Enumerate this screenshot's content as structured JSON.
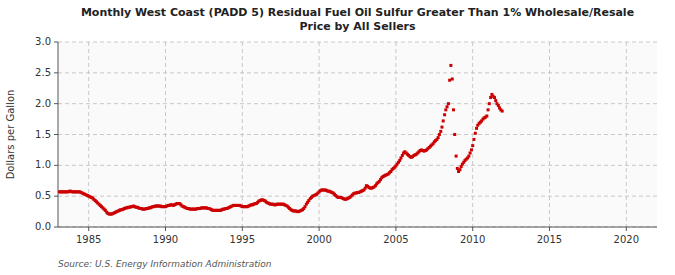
{
  "chart_data": {
    "type": "scatter",
    "title": "Monthly West Coast (PADD 5) Residual Fuel Oil Sulfur Greater Than 1% Wholesale/Resale\nPrice by All Sellers",
    "y_label": "Dollars per Gallon",
    "annotations": [
      "Source: U.S. Energy Information Administration"
    ],
    "color": "#cc0000",
    "marker": "square",
    "grid": true,
    "xlim": [
      1983,
      2022
    ],
    "ylim": [
      0.0,
      3.0
    ],
    "xticks": [
      1985,
      1990,
      1995,
      2000,
      2005,
      2010,
      2015,
      2020
    ],
    "yticks": [
      {
        "value": 0.0,
        "label": "0.0"
      },
      0.5,
      {
        "value": 1.0,
        "label": "1.0"
      },
      1.5,
      {
        "value": 2.0,
        "label": "2.0"
      },
      2.5,
      {
        "value": 3.0,
        "label": "3.0"
      }
    ],
    "x": [
      1983.08,
      1983.17,
      1983.25,
      1983.33,
      1983.42,
      1983.5,
      1983.58,
      1983.67,
      1983.75,
      1983.83,
      1983.92,
      1984.0,
      1984.08,
      1984.17,
      1984.25,
      1984.33,
      1984.42,
      1984.5,
      1984.58,
      1984.67,
      1984.75,
      1984.83,
      1984.92,
      1985.0,
      1985.08,
      1985.17,
      1985.25,
      1985.33,
      1985.42,
      1985.5,
      1985.58,
      1985.67,
      1985.75,
      1985.83,
      1985.92,
      1986.0,
      1986.08,
      1986.17,
      1986.25,
      1986.33,
      1986.42,
      1986.5,
      1986.58,
      1986.67,
      1986.75,
      1986.83,
      1986.92,
      1987.0,
      1987.08,
      1987.17,
      1987.25,
      1987.33,
      1987.42,
      1987.5,
      1987.58,
      1987.67,
      1987.75,
      1987.83,
      1987.92,
      1988.0,
      1988.08,
      1988.17,
      1988.25,
      1988.33,
      1988.42,
      1988.5,
      1988.58,
      1988.67,
      1988.75,
      1988.83,
      1988.92,
      1989.0,
      1989.08,
      1989.17,
      1989.25,
      1989.33,
      1989.42,
      1989.5,
      1989.58,
      1989.67,
      1989.75,
      1989.83,
      1989.92,
      1990.0,
      1990.08,
      1990.17,
      1990.25,
      1990.33,
      1990.42,
      1990.5,
      1990.58,
      1990.67,
      1990.75,
      1990.83,
      1990.92,
      1991.0,
      1991.08,
      1991.17,
      1991.25,
      1991.33,
      1991.42,
      1991.5,
      1991.58,
      1991.67,
      1991.75,
      1991.83,
      1991.92,
      1992.0,
      1992.08,
      1992.17,
      1992.25,
      1992.33,
      1992.42,
      1992.5,
      1992.58,
      1992.67,
      1992.75,
      1992.83,
      1992.92,
      1993.0,
      1993.08,
      1993.17,
      1993.25,
      1993.33,
      1993.42,
      1993.5,
      1993.58,
      1993.67,
      1993.75,
      1993.83,
      1993.92,
      1994.0,
      1994.08,
      1994.17,
      1994.25,
      1994.33,
      1994.42,
      1994.5,
      1994.58,
      1994.67,
      1994.75,
      1994.83,
      1994.92,
      1995.0,
      1995.08,
      1995.17,
      1995.25,
      1995.33,
      1995.42,
      1995.5,
      1995.58,
      1995.67,
      1995.75,
      1995.83,
      1995.92,
      1996.0,
      1996.08,
      1996.17,
      1996.25,
      1996.33,
      1996.42,
      1996.5,
      1996.58,
      1996.67,
      1996.75,
      1996.83,
      1996.92,
      1997.0,
      1997.08,
      1997.17,
      1997.25,
      1997.33,
      1997.42,
      1997.5,
      1997.58,
      1997.67,
      1997.75,
      1997.83,
      1997.92,
      1998.0,
      1998.08,
      1998.17,
      1998.25,
      1998.33,
      1998.42,
      1998.5,
      1998.58,
      1998.67,
      1998.75,
      1998.83,
      1998.92,
      1999.0,
      1999.08,
      1999.17,
      1999.25,
      1999.33,
      1999.42,
      1999.5,
      1999.58,
      1999.67,
      1999.75,
      1999.83,
      1999.92,
      2000.0,
      2000.08,
      2000.17,
      2000.25,
      2000.33,
      2000.42,
      2000.5,
      2000.58,
      2000.67,
      2000.75,
      2000.83,
      2000.92,
      2001.0,
      2001.08,
      2001.17,
      2001.25,
      2001.33,
      2001.42,
      2001.5,
      2001.58,
      2001.67,
      2001.75,
      2001.83,
      2001.92,
      2002.0,
      2002.08,
      2002.17,
      2002.25,
      2002.33,
      2002.42,
      2002.5,
      2002.58,
      2002.67,
      2002.75,
      2002.83,
      2002.92,
      2003.0,
      2003.08,
      2003.17,
      2003.25,
      2003.33,
      2003.42,
      2003.5,
      2003.58,
      2003.67,
      2003.75,
      2003.83,
      2003.92,
      2004.0,
      2004.08,
      2004.17,
      2004.25,
      2004.33,
      2004.42,
      2004.5,
      2004.58,
      2004.67,
      2004.75,
      2004.83,
      2004.92,
      2005.0,
      2005.08,
      2005.17,
      2005.25,
      2005.33,
      2005.42,
      2005.5,
      2005.58,
      2005.67,
      2005.75,
      2005.83,
      2005.92,
      2006.0,
      2006.08,
      2006.17,
      2006.25,
      2006.33,
      2006.42,
      2006.5,
      2006.58,
      2006.67,
      2006.75,
      2006.83,
      2006.92,
      2007.0,
      2007.08,
      2007.17,
      2007.25,
      2007.33,
      2007.42,
      2007.5,
      2007.58,
      2007.67,
      2007.75,
      2007.83,
      2007.92,
      2008.0,
      2008.08,
      2008.17,
      2008.25,
      2008.33,
      2008.42,
      2008.5,
      2008.58,
      2008.67,
      2008.75,
      2008.83,
      2008.92,
      2009.0,
      2009.08,
      2009.17,
      2009.25,
      2009.33,
      2009.42,
      2009.5,
      2009.58,
      2009.67,
      2009.75,
      2009.83,
      2009.92,
      2010.0,
      2010.08,
      2010.17,
      2010.25,
      2010.33,
      2010.42,
      2010.5,
      2010.58,
      2010.67,
      2010.75,
      2010.83,
      2010.92,
      2011.0,
      2011.08,
      2011.17,
      2011.25,
      2011.33,
      2011.42,
      2011.5,
      2011.58,
      2011.67,
      2011.75,
      2011.83,
      2011.92
    ],
    "values": [
      0.57,
      0.57,
      0.57,
      0.57,
      0.57,
      0.57,
      0.57,
      0.57,
      0.58,
      0.58,
      0.57,
      0.57,
      0.57,
      0.57,
      0.57,
      0.57,
      0.57,
      0.56,
      0.55,
      0.54,
      0.53,
      0.52,
      0.51,
      0.5,
      0.49,
      0.48,
      0.47,
      0.45,
      0.43,
      0.41,
      0.39,
      0.37,
      0.35,
      0.33,
      0.31,
      0.29,
      0.27,
      0.24,
      0.22,
      0.21,
      0.21,
      0.21,
      0.22,
      0.23,
      0.24,
      0.25,
      0.26,
      0.27,
      0.28,
      0.28,
      0.29,
      0.3,
      0.31,
      0.31,
      0.32,
      0.32,
      0.33,
      0.33,
      0.34,
      0.33,
      0.32,
      0.32,
      0.31,
      0.3,
      0.3,
      0.29,
      0.29,
      0.29,
      0.3,
      0.3,
      0.31,
      0.31,
      0.32,
      0.33,
      0.33,
      0.34,
      0.34,
      0.34,
      0.34,
      0.34,
      0.33,
      0.33,
      0.33,
      0.33,
      0.34,
      0.35,
      0.35,
      0.36,
      0.36,
      0.35,
      0.36,
      0.37,
      0.38,
      0.38,
      0.38,
      0.36,
      0.34,
      0.33,
      0.32,
      0.31,
      0.3,
      0.3,
      0.29,
      0.29,
      0.29,
      0.29,
      0.29,
      0.29,
      0.3,
      0.3,
      0.3,
      0.31,
      0.31,
      0.31,
      0.31,
      0.31,
      0.3,
      0.3,
      0.29,
      0.28,
      0.27,
      0.27,
      0.27,
      0.27,
      0.27,
      0.27,
      0.27,
      0.28,
      0.29,
      0.29,
      0.3,
      0.3,
      0.31,
      0.32,
      0.33,
      0.34,
      0.35,
      0.35,
      0.35,
      0.35,
      0.35,
      0.35,
      0.34,
      0.33,
      0.33,
      0.33,
      0.33,
      0.33,
      0.34,
      0.35,
      0.36,
      0.36,
      0.37,
      0.38,
      0.38,
      0.4,
      0.42,
      0.43,
      0.44,
      0.44,
      0.43,
      0.42,
      0.4,
      0.39,
      0.38,
      0.37,
      0.37,
      0.37,
      0.36,
      0.36,
      0.37,
      0.37,
      0.37,
      0.37,
      0.37,
      0.37,
      0.36,
      0.35,
      0.34,
      0.32,
      0.3,
      0.28,
      0.27,
      0.26,
      0.26,
      0.26,
      0.25,
      0.25,
      0.26,
      0.27,
      0.28,
      0.3,
      0.33,
      0.37,
      0.4,
      0.43,
      0.46,
      0.48,
      0.5,
      0.51,
      0.52,
      0.53,
      0.55,
      0.57,
      0.59,
      0.6,
      0.6,
      0.6,
      0.6,
      0.59,
      0.58,
      0.58,
      0.57,
      0.56,
      0.55,
      0.53,
      0.51,
      0.49,
      0.48,
      0.48,
      0.48,
      0.47,
      0.46,
      0.45,
      0.45,
      0.46,
      0.47,
      0.48,
      0.5,
      0.52,
      0.54,
      0.55,
      0.55,
      0.56,
      0.56,
      0.57,
      0.58,
      0.59,
      0.6,
      0.63,
      0.67,
      0.66,
      0.64,
      0.63,
      0.63,
      0.64,
      0.65,
      0.67,
      0.7,
      0.72,
      0.74,
      0.77,
      0.8,
      0.82,
      0.83,
      0.84,
      0.85,
      0.86,
      0.88,
      0.9,
      0.93,
      0.95,
      0.97,
      0.99,
      1.02,
      1.05,
      1.08,
      1.12,
      1.16,
      1.2,
      1.22,
      1.2,
      1.18,
      1.16,
      1.14,
      1.13,
      1.14,
      1.16,
      1.17,
      1.18,
      1.2,
      1.22,
      1.24,
      1.25,
      1.24,
      1.23,
      1.24,
      1.25,
      1.27,
      1.29,
      1.31,
      1.33,
      1.35,
      1.38,
      1.4,
      1.42,
      1.45,
      1.5,
      1.55,
      1.62,
      1.72,
      1.82,
      1.9,
      1.95,
      2.0,
      2.38,
      2.62,
      2.4,
      1.9,
      1.5,
      1.15,
      0.95,
      0.9,
      0.93,
      0.98,
      1.02,
      1.05,
      1.08,
      1.1,
      1.12,
      1.15,
      1.2,
      1.25,
      1.32,
      1.42,
      1.52,
      1.6,
      1.65,
      1.68,
      1.7,
      1.72,
      1.75,
      1.77,
      1.78,
      1.8,
      1.9,
      2.0,
      2.1,
      2.15,
      2.12,
      2.1,
      2.05,
      2.0,
      1.97,
      1.93,
      1.9,
      1.88
    ]
  }
}
